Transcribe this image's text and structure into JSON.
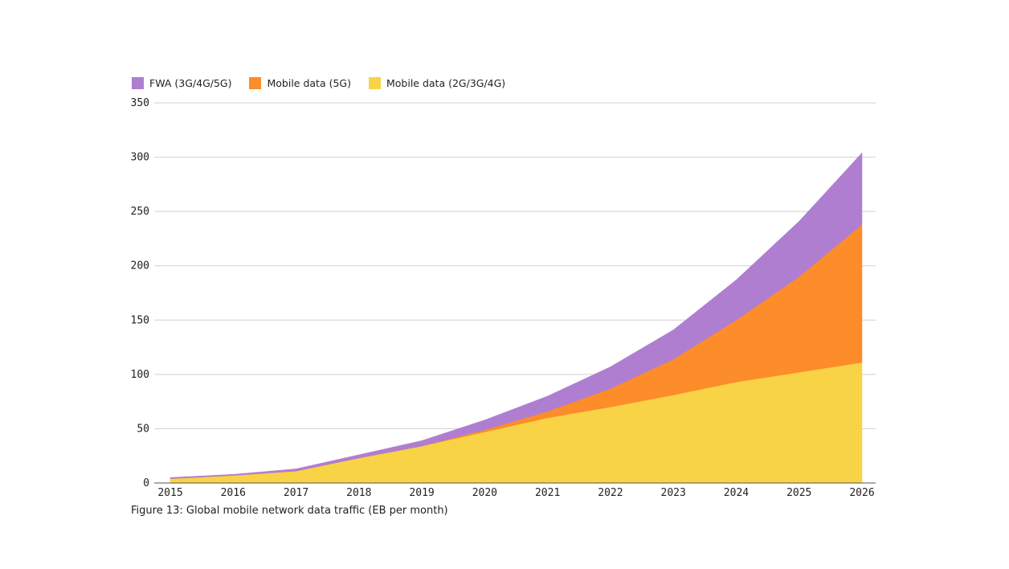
{
  "chart_data": {
    "type": "area",
    "stacked": true,
    "caption": "Figure 13: Global mobile network data traffic (EB per month)",
    "x": [
      "2015",
      "2016",
      "2017",
      "2018",
      "2019",
      "2020",
      "2021",
      "2022",
      "2023",
      "2024",
      "2025",
      "2026"
    ],
    "ylim": [
      0,
      350
    ],
    "yticks": [
      "0",
      "50",
      "100",
      "150",
      "200",
      "250",
      "300",
      "350"
    ],
    "grid": true,
    "legend_position": "top-left",
    "series": [
      {
        "name": "Mobile data (2G/3G/4G)",
        "color": "#f7d345",
        "values": [
          4,
          7,
          11,
          23,
          34,
          47,
          60,
          70,
          81,
          93,
          102,
          111
        ]
      },
      {
        "name": "Mobile data (5G)",
        "color": "#fd8c2a",
        "values": [
          0,
          0,
          0,
          0,
          0,
          2,
          6,
          17,
          33,
          57,
          88,
          127
        ]
      },
      {
        "name": "FWA (3G/4G/5G)",
        "color": "#af7ed1",
        "values": [
          1,
          1,
          2,
          3,
          5,
          9,
          14,
          20,
          27,
          37,
          51,
          66
        ]
      }
    ],
    "legend_order": [
      2,
      1,
      0
    ]
  }
}
